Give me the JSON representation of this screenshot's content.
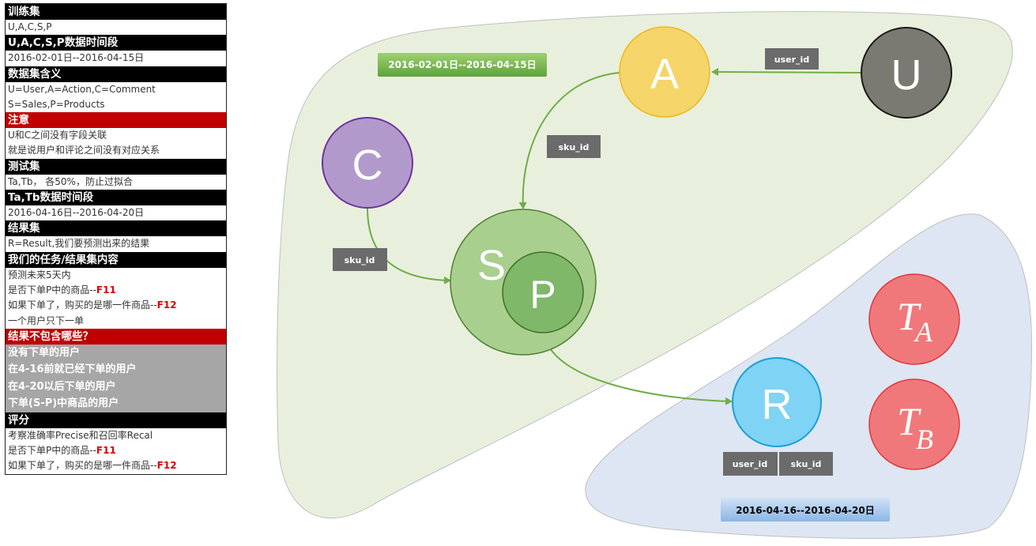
{
  "info_table": {
    "train_header": "训练集",
    "train_value": "U,A,C,S,P",
    "period_header": "U,A,C,S,P数据时间段",
    "period_value": "2016-02-01日--2016-04-15日",
    "meaning_header": "数据集含义",
    "meaning_line1": "U=User,A=Action,C=Comment",
    "meaning_line2": "S=Sales,P=Products",
    "note_header": "注意",
    "note_line1": "U和C之间没有字段关联",
    "note_line2": "就是说用户和评论之间没有对应关系",
    "test_header": "测试集",
    "test_value": "Ta,Tb，  各50%，防止过拟合",
    "test_period_header": "Ta,Tb数据时间段",
    "test_period_value": "2016-04-16日--2016-04-20日",
    "result_header": "结果集",
    "result_value": "R=Result,我们要预测出来的结果",
    "task_header": "我们的任务/结果集内容",
    "task_line1": "预测未来5天内",
    "task_line2_text": "是否下单P中的商品--",
    "task_line2_code": "F11",
    "task_line3_text": "如果下单了，购买的是哪一件商品--",
    "task_line3_code": "F12",
    "task_line4": "一个用户只下一单",
    "exclude_header": "结果不包含哪些？",
    "exclude_items": [
      "没有下单的用户",
      "在4-16前就已经下单的用户",
      "在4-20以后下单的用户",
      "下单(S-P)中商品的用户"
    ],
    "score_header": "评分",
    "score_line1": "考察准确率Precise和召回率Recal",
    "score_line2_text": "是否下单P中的商品--",
    "score_line2_code": "F11",
    "score_line3_text": "如果下单了，购买的是哪一件商品--",
    "score_line3_code": "F12"
  },
  "diagram": {
    "train_date_label": "2016-02-01日--2016-04-15日",
    "test_date_label": "2016-04-16--2016-04-20日",
    "nodes": {
      "A": "A",
      "U": "U",
      "C": "C",
      "S": "S",
      "P": "P",
      "R": "R",
      "TA_main": "T",
      "TA_sub": "A",
      "TB_main": "T",
      "TB_sub": "B"
    },
    "edge_labels": {
      "u_to_a": "user_id",
      "a_to_s": "sku_id",
      "c_to_s": "sku_id",
      "r_user": "user_id",
      "r_sku": "sku_id"
    },
    "colors": {
      "train_region": "#e8f0dd",
      "test_region": "#dde6f2",
      "A": "#f5d56a",
      "U": "#7a7a72",
      "C": "#b19acb",
      "S": "#a9cf8e",
      "P": "#7fb869",
      "R": "#7fd3f5",
      "T": "#f1787a",
      "arrow": "#70ad47",
      "tag": "#6b6b6b"
    }
  }
}
